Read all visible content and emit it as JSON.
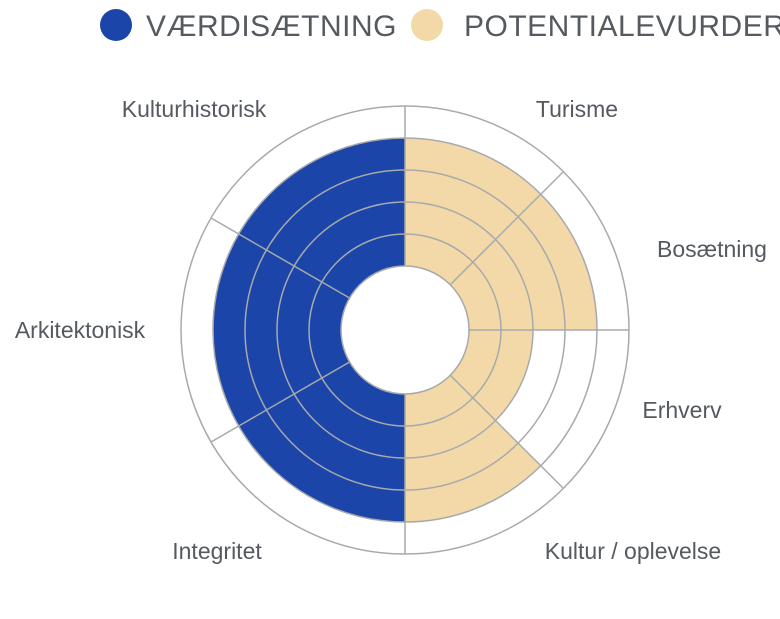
{
  "chart_data": {
    "type": "polar-area",
    "legend": [
      {
        "name": "VÆRDISÆTNING",
        "color": "#1b45a8"
      },
      {
        "name": "POTENTIALEVURDERING",
        "color": "#f3d9a8"
      }
    ],
    "legend_position": "top",
    "max_level": 5,
    "categories": [
      {
        "label": "Turisme",
        "series": "POTENTIALEVURDERING",
        "value": 4
      },
      {
        "label": "Bosætning",
        "series": "POTENTIALEVURDERING",
        "value": 4
      },
      {
        "label": "Erhverv",
        "series": "POTENTIALEVURDERING",
        "value": 2
      },
      {
        "label": "Kultur / oplevelse",
        "series": "POTENTIALEVURDERING",
        "value": 4
      },
      {
        "label": "Integritet",
        "series": "VÆRDISÆTNING",
        "value": 4
      },
      {
        "label": "Arkitektonisk",
        "series": "VÆRDISÆTNING",
        "value": 4
      },
      {
        "label": "Kulturhistorisk",
        "series": "VÆRDISÆTNING",
        "value": 4
      }
    ],
    "ring_color": "#a7a9ac"
  }
}
